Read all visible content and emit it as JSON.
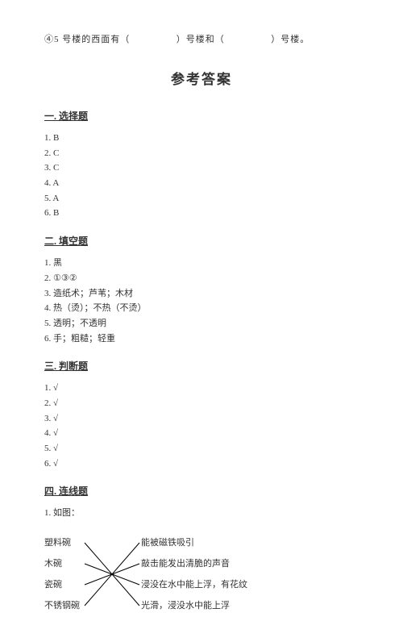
{
  "topQuestion": {
    "prefix": "④5 号楼的西面有（",
    "mid": "）号楼和（",
    "suffix": "）号楼。"
  },
  "mainTitle": "参考答案",
  "sections": {
    "s1": {
      "title": "一. 选择题",
      "items": [
        "1. B",
        "2. C",
        "3. C",
        "4. A",
        "5. A",
        "6. B"
      ]
    },
    "s2": {
      "title": "二. 填空题",
      "items": [
        "1. 黑",
        "2. ①③②",
        "3. 造纸术；芦苇；木材",
        "4. 热（烫）；不热（不烫）",
        "5. 透明；不透明",
        "6. 手；粗糙；轻重"
      ]
    },
    "s3": {
      "title": "三. 判断题",
      "items": [
        "1. √",
        "2. √",
        "3. √",
        "4. √",
        "5. √",
        "6. √"
      ]
    },
    "s4": {
      "title": "四. 连线题",
      "intro": "1. 如图："
    }
  },
  "matching": {
    "left": [
      "塑料碗",
      "木碗",
      "瓷碗",
      "不锈钢碗"
    ],
    "right": [
      "能被磁铁吸引",
      "敲击能发出清脆的声音",
      "浸没在水中能上浮，有花纹",
      "光滑，浸没水中能上浮"
    ],
    "lines": [
      {
        "from": 0,
        "to": 3
      },
      {
        "from": 1,
        "to": 2
      },
      {
        "from": 2,
        "to": 1
      },
      {
        "from": 3,
        "to": 0
      }
    ],
    "lineColor": "#000000"
  }
}
